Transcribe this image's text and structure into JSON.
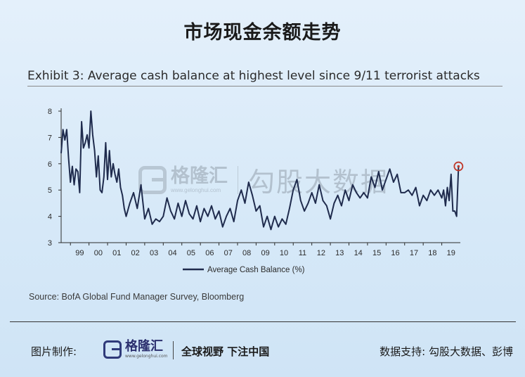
{
  "header": {
    "title": "市场现金余额走势"
  },
  "exhibit": {
    "title": "Exhibit 3: Average cash balance at highest level since 9/11 terrorist attacks"
  },
  "source": "Source: BofA Global Fund Manager Survey, Bloomberg",
  "watermark": {
    "name": "格隆汇",
    "url": "www.gelonghui.com",
    "brand": "勾股大数据"
  },
  "footer": {
    "credit_label": "图片制作:",
    "logo_name": "格隆汇",
    "logo_url": "www.gelonghui.com",
    "slogan": "全球视野 下注中国",
    "data_source": "数据支持: 勾股大数据、彭博"
  },
  "colors": {
    "line": "#1f2b4d",
    "marker": "#c0392b",
    "text": "#2b2b2b"
  },
  "chart_data": {
    "type": "line",
    "xlabel": "",
    "ylabel": "",
    "xlim": [
      1998.5,
      2020.0
    ],
    "ylim": [
      3,
      8
    ],
    "yticks": [
      3,
      4,
      5,
      6,
      7,
      8
    ],
    "xtick_labels": [
      "99",
      "00",
      "01",
      "02",
      "03",
      "04",
      "05",
      "06",
      "07",
      "08",
      "09",
      "10",
      "11",
      "12",
      "13",
      "14",
      "15",
      "16",
      "17",
      "18",
      "19"
    ],
    "xtick_years": [
      1999,
      2000,
      2001,
      2002,
      2003,
      2004,
      2005,
      2006,
      2007,
      2008,
      2009,
      2010,
      2011,
      2012,
      2013,
      2014,
      2015,
      2016,
      2017,
      2018,
      2019
    ],
    "legend": {
      "label": "Average Cash Balance (%)",
      "position": "bottom-left"
    },
    "grid": false,
    "highlight": {
      "x": 2019.9,
      "y": 5.9,
      "note": "latest reading circled"
    },
    "series": [
      {
        "name": "Average Cash Balance (%)",
        "x": [
          1998.5,
          1998.6,
          1998.7,
          1998.8,
          1998.9,
          1999.0,
          1999.1,
          1999.2,
          1999.3,
          1999.4,
          1999.5,
          1999.6,
          1999.7,
          1999.8,
          1999.9,
          2000.0,
          2000.1,
          2000.2,
          2000.3,
          2000.4,
          2000.5,
          2000.6,
          2000.7,
          2000.8,
          2000.9,
          2001.0,
          2001.1,
          2001.2,
          2001.3,
          2001.4,
          2001.5,
          2001.6,
          2001.7,
          2001.8,
          2001.9,
          2002.0,
          2002.2,
          2002.4,
          2002.6,
          2002.8,
          2003.0,
          2003.2,
          2003.4,
          2003.6,
          2003.8,
          2004.0,
          2004.2,
          2004.4,
          2004.6,
          2004.8,
          2005.0,
          2005.2,
          2005.4,
          2005.6,
          2005.8,
          2006.0,
          2006.2,
          2006.4,
          2006.6,
          2006.8,
          2007.0,
          2007.2,
          2007.4,
          2007.6,
          2007.8,
          2008.0,
          2008.2,
          2008.4,
          2008.6,
          2008.8,
          2009.0,
          2009.2,
          2009.4,
          2009.6,
          2009.8,
          2010.0,
          2010.2,
          2010.4,
          2010.6,
          2010.8,
          2011.0,
          2011.2,
          2011.4,
          2011.6,
          2011.8,
          2012.0,
          2012.2,
          2012.4,
          2012.6,
          2012.8,
          2013.0,
          2013.2,
          2013.4,
          2013.6,
          2013.8,
          2014.0,
          2014.2,
          2014.4,
          2014.6,
          2014.8,
          2015.0,
          2015.2,
          2015.4,
          2015.6,
          2015.8,
          2016.0,
          2016.2,
          2016.4,
          2016.6,
          2016.8,
          2017.0,
          2017.2,
          2017.4,
          2017.6,
          2017.8,
          2018.0,
          2018.2,
          2018.4,
          2018.6,
          2018.8,
          2019.0,
          2019.1,
          2019.2,
          2019.3,
          2019.4,
          2019.5,
          2019.6,
          2019.7,
          2019.8,
          2019.9
        ],
        "values": [
          6.4,
          7.3,
          6.9,
          7.3,
          6.2,
          5.3,
          5.9,
          5.2,
          5.8,
          5.7,
          4.9,
          7.6,
          6.6,
          6.8,
          7.1,
          6.6,
          8.0,
          7.1,
          6.5,
          5.5,
          6.3,
          5.0,
          4.9,
          5.5,
          6.8,
          5.4,
          6.5,
          5.5,
          6.0,
          5.6,
          5.3,
          5.8,
          5.1,
          4.8,
          4.3,
          4.0,
          4.5,
          4.9,
          4.3,
          5.2,
          3.9,
          4.3,
          3.7,
          3.9,
          3.8,
          4.0,
          4.7,
          4.2,
          3.9,
          4.5,
          4.0,
          4.6,
          4.1,
          3.9,
          4.4,
          3.8,
          4.3,
          4.0,
          4.4,
          3.9,
          4.2,
          3.6,
          4.0,
          4.3,
          3.8,
          4.6,
          5.0,
          4.5,
          5.3,
          4.8,
          4.2,
          4.4,
          3.6,
          4.0,
          3.5,
          4.0,
          3.6,
          3.9,
          3.7,
          4.3,
          5.0,
          5.4,
          4.6,
          4.2,
          4.5,
          4.9,
          4.5,
          5.2,
          4.6,
          4.4,
          3.9,
          4.5,
          4.8,
          4.4,
          5.0,
          4.6,
          5.2,
          4.9,
          4.7,
          4.9,
          4.7,
          5.5,
          5.1,
          5.7,
          5.0,
          5.4,
          5.8,
          5.3,
          5.6,
          4.9,
          4.9,
          5.0,
          4.8,
          5.1,
          4.4,
          4.8,
          4.6,
          5.0,
          4.8,
          5.0,
          4.7,
          5.0,
          4.4,
          5.1,
          4.6,
          5.6,
          4.2,
          4.2,
          4.0,
          5.9
        ]
      }
    ]
  }
}
